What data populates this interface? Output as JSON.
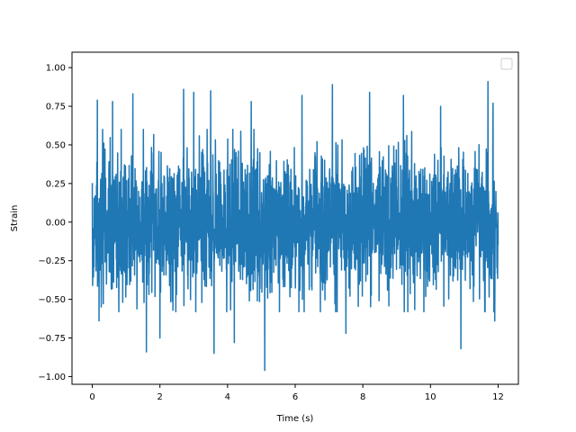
{
  "chart_data": {
    "type": "line",
    "title": "",
    "xlabel": "Time (s)",
    "ylabel": "Strain",
    "xlim": [
      -0.6,
      12.6
    ],
    "ylim": [
      -1.05,
      1.1
    ],
    "grid": false,
    "legend": {
      "placement": "top-right",
      "entries": []
    },
    "x_ticks": [
      {
        "value": 0,
        "label": "0"
      },
      {
        "value": 2,
        "label": "2"
      },
      {
        "value": 4,
        "label": "4"
      },
      {
        "value": 6,
        "label": "6"
      },
      {
        "value": 8,
        "label": "8"
      },
      {
        "value": 10,
        "label": "10"
      },
      {
        "value": 12,
        "label": "12"
      }
    ],
    "y_ticks": [
      {
        "value": -1.0,
        "label": "−1.00"
      },
      {
        "value": -0.75,
        "label": "−0.75"
      },
      {
        "value": -0.5,
        "label": "−0.50"
      },
      {
        "value": -0.25,
        "label": "−0.25"
      },
      {
        "value": 0.0,
        "label": "0.00"
      },
      {
        "value": 0.25,
        "label": "0.25"
      },
      {
        "value": 0.5,
        "label": "0.50"
      },
      {
        "value": 0.75,
        "label": "0.75"
      },
      {
        "value": 1.0,
        "label": "1.00"
      }
    ],
    "series": [
      {
        "color": "#1f77b4",
        "x_start": 0,
        "x_end": 12.0,
        "extremes": [
          {
            "x": 0.15,
            "y": 0.79
          },
          {
            "x": 0.2,
            "y": -0.64
          },
          {
            "x": 0.6,
            "y": 0.78
          },
          {
            "x": 0.9,
            "y": -0.52
          },
          {
            "x": 1.2,
            "y": 0.83
          },
          {
            "x": 1.6,
            "y": -0.84
          },
          {
            "x": 2.0,
            "y": -0.75
          },
          {
            "x": 2.7,
            "y": 0.86
          },
          {
            "x": 3.0,
            "y": 0.84
          },
          {
            "x": 3.5,
            "y": 0.85
          },
          {
            "x": 3.6,
            "y": -0.85
          },
          {
            "x": 4.2,
            "y": -0.78
          },
          {
            "x": 4.7,
            "y": 0.78
          },
          {
            "x": 5.1,
            "y": -0.96
          },
          {
            "x": 6.2,
            "y": 0.82
          },
          {
            "x": 7.1,
            "y": 0.89
          },
          {
            "x": 7.5,
            "y": -0.72
          },
          {
            "x": 8.2,
            "y": 0.84
          },
          {
            "x": 9.2,
            "y": 0.82
          },
          {
            "x": 10.3,
            "y": 0.75
          },
          {
            "x": 10.9,
            "y": -0.82
          },
          {
            "x": 11.7,
            "y": 0.91
          },
          {
            "x": 11.85,
            "y": 0.77
          },
          {
            "x": 11.9,
            "y": -0.64
          }
        ]
      }
    ]
  }
}
